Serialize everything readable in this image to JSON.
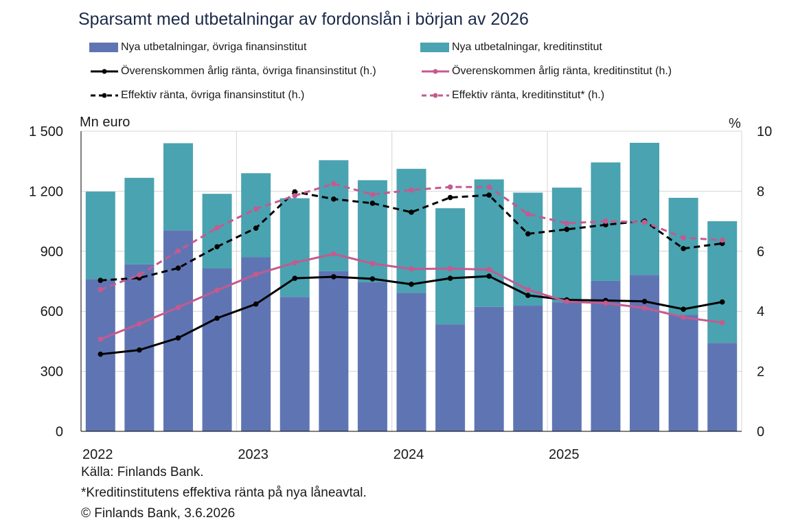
{
  "chart_data": {
    "type": "bar",
    "title": "Sparsamt med utbetalningar av fordonslån i början av 2026",
    "y_left_label": "Mn euro",
    "y_right_label": "%",
    "y_left_lim": [
      0,
      1500
    ],
    "y_right_lim": [
      0,
      10
    ],
    "y_left_ticks": [
      "0",
      "300",
      "600",
      "900",
      "1 200",
      "1 500"
    ],
    "y_right_ticks": [
      "0",
      "2",
      "4",
      "6",
      "8",
      "10"
    ],
    "x_tick_labels": [
      "2022",
      "2023",
      "2024",
      "2025"
    ],
    "x_tick_positions": [
      0,
      4,
      8,
      12
    ],
    "stacked": true,
    "grid": true,
    "bar_series": [
      {
        "name": "Nya utbetalningar, övriga finansinstitut",
        "color": "#5f75b3",
        "values": [
          760,
          835,
          1005,
          815,
          870,
          672,
          800,
          745,
          692,
          535,
          622,
          628,
          645,
          752,
          782,
          582,
          442
        ]
      },
      {
        "name": "Nya utbetalningar, kreditinstitut",
        "color": "#4aa3b1",
        "values": [
          438,
          432,
          435,
          372,
          420,
          493,
          555,
          510,
          620,
          580,
          637,
          565,
          573,
          592,
          660,
          585,
          608
        ]
      }
    ],
    "line_series": [
      {
        "name": "Överenskommen årlig ränta, övriga finansinstitut (h.)",
        "color": "#000000",
        "dashed": false,
        "values": [
          2.57,
          2.71,
          3.11,
          3.77,
          4.24,
          5.1,
          5.15,
          5.08,
          4.9,
          5.1,
          5.17,
          4.53,
          4.38,
          4.36,
          4.33,
          4.07,
          4.31
        ]
      },
      {
        "name": "Överenskommen årlig ränta, kreditinstitut (h.)",
        "color": "#c45a8f",
        "dashed": false,
        "values": [
          3.07,
          3.58,
          4.13,
          4.7,
          5.23,
          5.62,
          5.91,
          5.59,
          5.41,
          5.42,
          5.39,
          4.72,
          4.32,
          4.27,
          4.11,
          3.8,
          3.62
        ]
      },
      {
        "name": "Effektiv ränta, övriga finansinstitut (h.)",
        "color": "#000000",
        "dashed": true,
        "values": [
          5.03,
          5.11,
          5.44,
          6.15,
          6.77,
          7.98,
          7.74,
          7.6,
          7.3,
          7.79,
          7.87,
          6.58,
          6.73,
          6.88,
          7.01,
          6.09,
          6.26
        ]
      },
      {
        "name": "Effektiv ränta, kreditinstitut* (h.)",
        "color": "#c45a8f",
        "dashed": true,
        "values": [
          4.72,
          5.21,
          6.01,
          6.78,
          7.41,
          7.85,
          8.25,
          7.89,
          8.04,
          8.14,
          8.14,
          7.24,
          6.93,
          7.0,
          6.97,
          6.45,
          6.37
        ]
      }
    ]
  },
  "footer": {
    "source": "Källa: Finlands Bank.",
    "note": "*Kreditinstitutens  effektiva ränta på nya låneavtal.",
    "copyright": "© Finlands Bank, 3.6.2026"
  }
}
